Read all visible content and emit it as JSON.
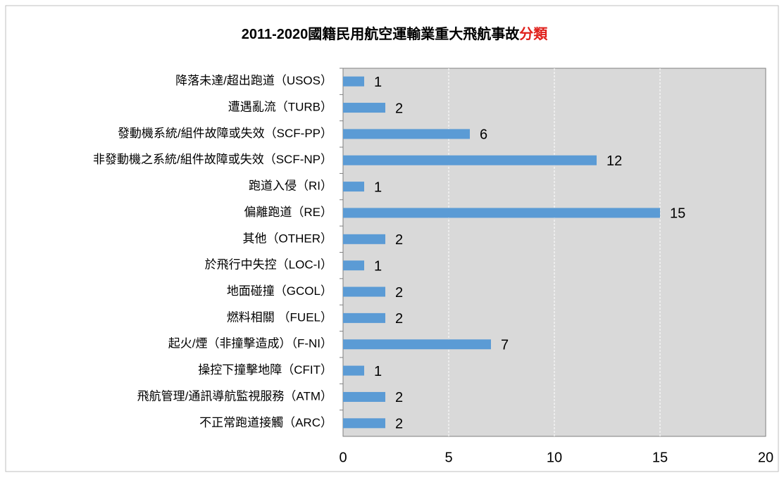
{
  "chart_data": {
    "type": "barh",
    "title": [
      {
        "text": "2011-2020國籍民用航空運輸業重大飛航事故",
        "color": "#000000"
      },
      {
        "text": "分類",
        "color": "#e0201b"
      }
    ],
    "categories": [
      "降落未達/超出跑道（USOS）",
      "遭遇亂流（TURB）",
      "發動機系統/組件故障或失效（SCF-PP）",
      "非發動機之系統/組件故障或失效（SCF-NP）",
      "跑道入侵（RI）",
      "偏離跑道（RE）",
      "其他（OTHER）",
      "於飛行中失控（LOC-I）",
      "地面碰撞（GCOL）",
      "燃料相關 （FUEL）",
      "起火/煙（非撞擊造成）（F-NI）",
      "操控下撞擊地障（CFIT）",
      "飛航管理/通訊導航監視服務（ATM）",
      "不正常跑道接觸（ARC）"
    ],
    "values": [
      1,
      2,
      6,
      12,
      1,
      15,
      2,
      1,
      2,
      2,
      7,
      1,
      2,
      2
    ],
    "color": "#5b9bd5",
    "xlim": [
      0,
      20
    ],
    "xticks": [
      0,
      5,
      10,
      15,
      20
    ],
    "grid": true
  }
}
